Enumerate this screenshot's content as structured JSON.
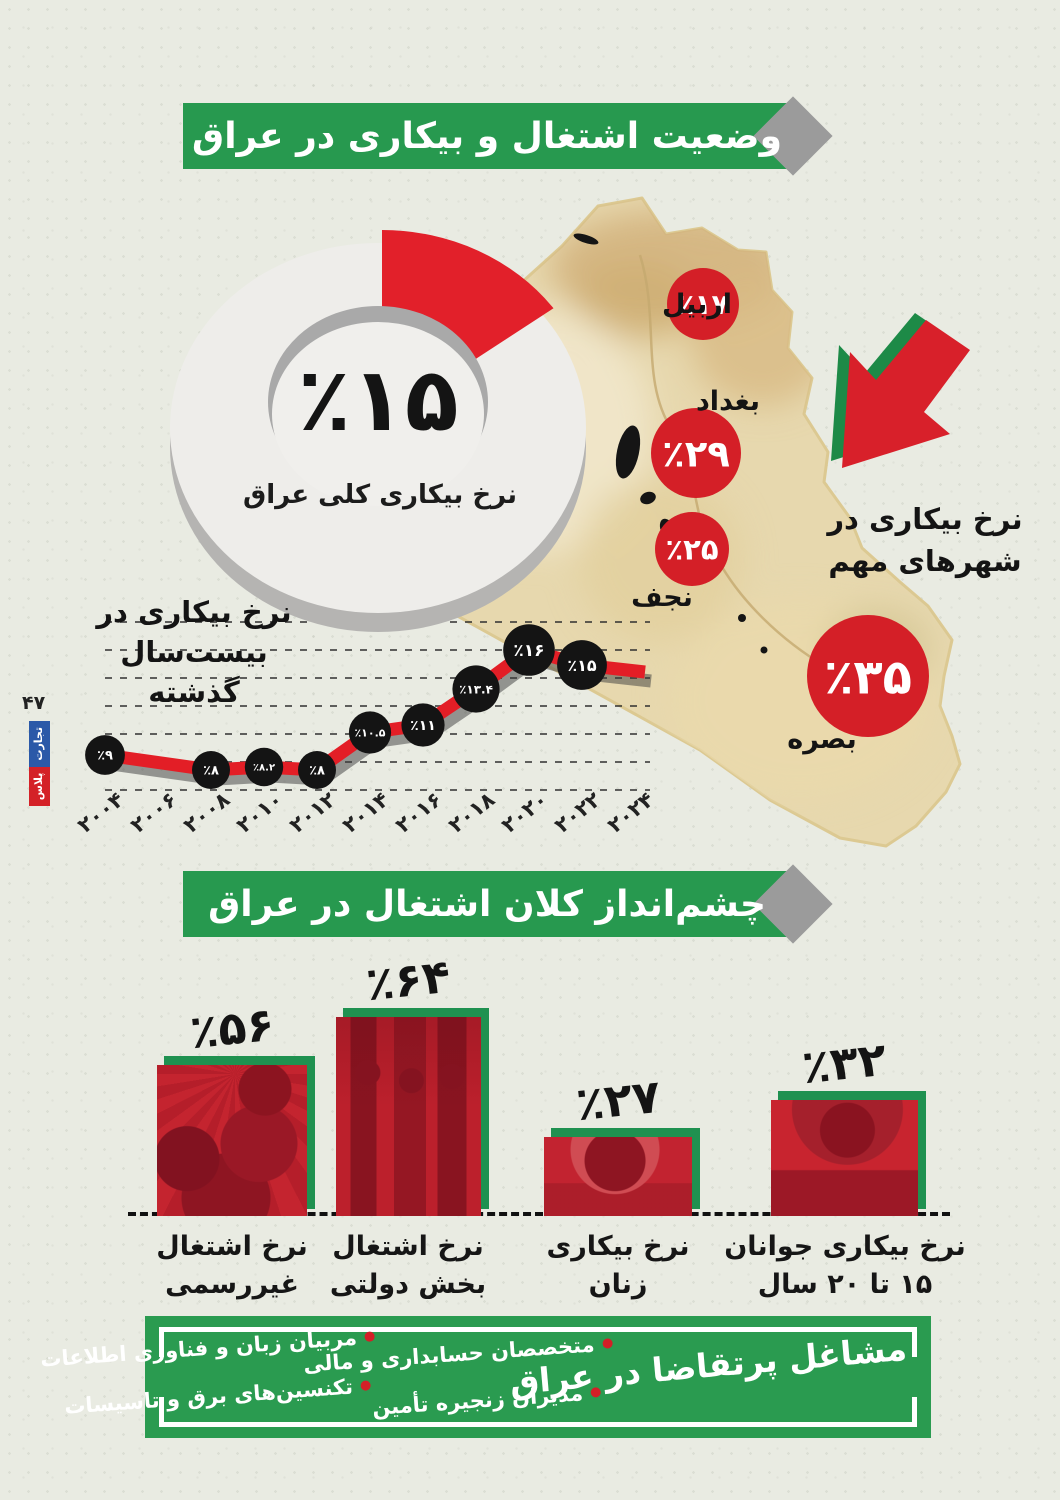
{
  "page_margin": {
    "page_number": "۴۷",
    "logo_word_1": "تجارت",
    "logo_word_2": "پلاس"
  },
  "section_employment": {
    "banner": "وضعیت اشتغال و بیکاری در عراق",
    "donut_value": "٪۱۵",
    "donut_caption": "نرخ بیکاری کلی عراق",
    "cities_note_line1": "نرخ بیکاری در",
    "cities_note_line2": "شهرهای مهم",
    "trend_title_line1": "نرخ بیکاری در",
    "trend_title_line2": "بیست‌سال گذشته"
  },
  "section_outlook": {
    "banner": "چشم‌انداز کلان اشتغال در عراق",
    "bars": [
      {
        "value": "٪۵۶",
        "caption_line1": "نرخ اشتغال",
        "caption_line2": "غیررسمی"
      },
      {
        "value": "٪۶۴",
        "caption_line1": "نرخ اشتغال",
        "caption_line2": "بخش دولتی"
      },
      {
        "value": "٪۲۷",
        "caption_line1": "نرخ بیکاری",
        "caption_line2": "زنان"
      },
      {
        "value": "٪۳۲",
        "caption_line1": "نرخ بیکاری جوانان",
        "caption_line2": "۱۵ تا ۲۰ سال"
      }
    ]
  },
  "footer": {
    "title": "مشاغل پرتقاضا در عراق",
    "items": [
      {
        "label": "متخصصان حسابداری و مالی"
      },
      {
        "label": "مربیان زبان و فناوری اطلاعات"
      },
      {
        "label": "مدیران زنجیره تأمین"
      },
      {
        "label": "تکنسین‌های برق و تاسیسات"
      }
    ]
  },
  "colors": {
    "green": "#27994f",
    "red": "#d41f27",
    "bright_red": "#e2202a",
    "gray_diamond": "#9b9b9b",
    "ink": "#161616"
  },
  "chart_data": [
    {
      "type": "pie",
      "title": "نرخ بیکاری کلی عراق",
      "slices": [
        {
          "label": "٪۱۵",
          "value": 15
        },
        {
          "label": "",
          "value": 85
        }
      ]
    },
    {
      "type": "line",
      "title": "نرخ بیکاری در بیست‌سال گذشته",
      "x_labels": [
        "۲۰۰۴",
        "۲۰۰۶",
        "۲۰۰۸",
        "۲۰۱۰",
        "۲۰۱۲",
        "۲۰۱۴",
        "۲۰۱۶",
        "۲۰۱۸",
        "۲۰۲۰",
        "۲۰۲۲",
        "۲۰۲۴"
      ],
      "points": [
        {
          "x": "۲۰۰۴",
          "value": 9,
          "label": "٪۹"
        },
        {
          "x": "۲۰۰۸",
          "value": 8,
          "label": "٪۸"
        },
        {
          "x": "۲۰۱۰",
          "value": 8.2,
          "label": "٪۸.۲"
        },
        {
          "x": "۲۰۱۲",
          "value": 8,
          "label": "٪۸"
        },
        {
          "x": "۲۰۱۴",
          "value": 10.5,
          "label": "٪۱۰.۵"
        },
        {
          "x": "۲۰۱۶",
          "value": 11,
          "label": "٪۱۱"
        },
        {
          "x": "۲۰۱۸",
          "value": 13.4,
          "label": "٪۱۳.۴"
        },
        {
          "x": "۲۰۲۰",
          "value": 16,
          "label": "٪۱۶"
        },
        {
          "x": "۲۰۲۲",
          "value": 15,
          "label": "٪۱۵"
        }
      ],
      "ylim": [
        7,
        17
      ],
      "grid": "dashed-horizontal"
    },
    {
      "type": "table",
      "title": "نرخ بیکاری در شهرهای مهم",
      "categories": [
        "اربیل",
        "بغداد",
        "نجف",
        "بصره"
      ],
      "values": [
        17,
        29,
        25,
        35
      ],
      "value_labels": [
        "٪۱۷",
        "٪۲۹",
        "٪۲۵",
        "٪۳۵"
      ]
    },
    {
      "type": "bar",
      "title": "چشم‌انداز کلان اشتغال در عراق",
      "categories": [
        "نرخ اشتغال غیررسمی",
        "نرخ اشتغال بخش دولتی",
        "نرخ بیکاری زنان",
        "نرخ بیکاری جوانان ۱۵ تا ۲۰ سال"
      ],
      "values": [
        56,
        64,
        27,
        32
      ],
      "value_labels": [
        "٪۵۶",
        "٪۶۴",
        "٪۲۷",
        "٪۳۲"
      ]
    }
  ]
}
